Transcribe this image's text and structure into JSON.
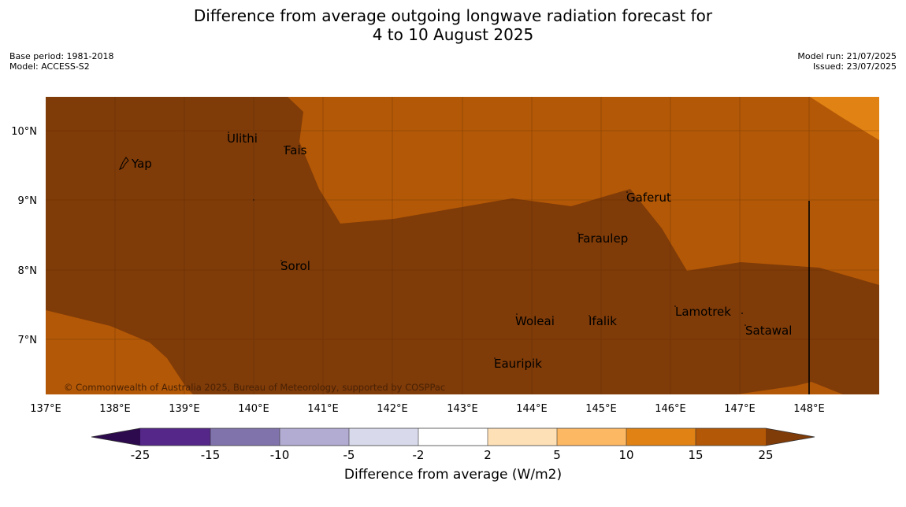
{
  "title_line1": "Difference from average outgoing longwave radiation forecast for",
  "title_line2": "4 to 10 August 2025",
  "base_period": "Base period: 1981-2018",
  "model": "Model: ACCESS-S2",
  "model_run": "Model run: 21/07/2025",
  "issued": "Issued: 23/07/2025",
  "copyright": "© Commonwealth of Australia 2025, Bureau of Meteorology, supported by COSPPac",
  "lat_ticks": [
    "10°N",
    "9°N",
    "8°N",
    "7°N"
  ],
  "lon_ticks": [
    "137°E",
    "138°E",
    "139°E",
    "140°E",
    "141°E",
    "142°E",
    "143°E",
    "144°E",
    "145°E",
    "146°E",
    "147°E",
    "148°E"
  ],
  "places": [
    "Ulithi",
    "Fais",
    "Yap",
    "Gaferut",
    "Faraulep",
    "Sorol",
    "Lamotrek",
    "Woleai",
    "Ifalik",
    "Satawal",
    "Eauripik"
  ],
  "colorbar": {
    "ticks": [
      "-25",
      "-15",
      "-10",
      "-5",
      "-2",
      "2",
      "5",
      "10",
      "15",
      "25"
    ],
    "colors": {
      "under": "#2d0a4e",
      "-25_-15": "#542788",
      "-15_-10": "#8073ac",
      "-10_-5": "#b2abd2",
      "-5_-2": "#d8daeb",
      "-2_2": "#ffffff",
      "2_5": "#fee0b6",
      "5_10": "#fdb863",
      "10_15": "#e08214",
      "15_25": "#b35806",
      "over": "#7f3b08"
    },
    "label": "Difference from average (W/m2)"
  }
}
